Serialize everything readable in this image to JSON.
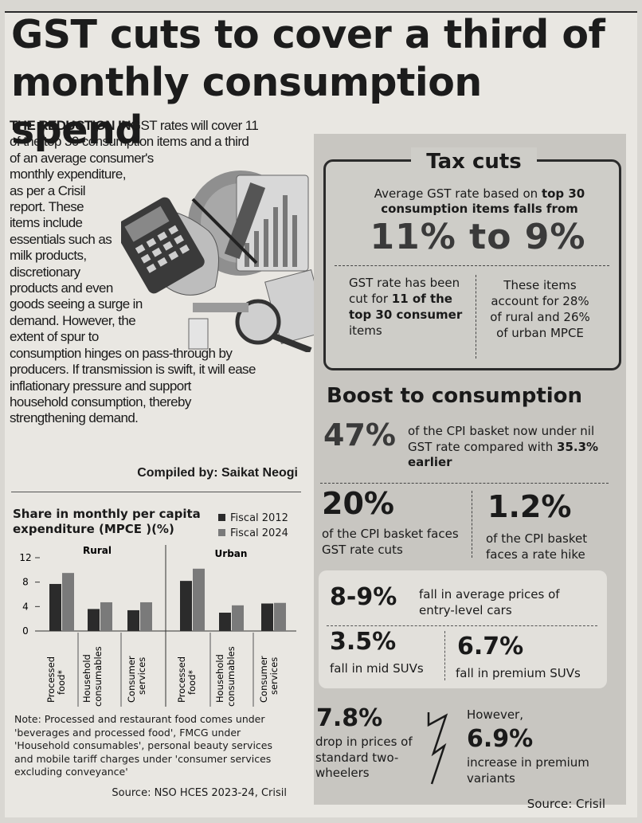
{
  "headline": {
    "line1": "GST cuts to cover a third of",
    "line2": "monthly consumption spend"
  },
  "intro": {
    "lead": "THE REDUCTION IN",
    "lines": [
      "GST rates will cover 11",
      "of the top 30 consumption items and a third",
      "of an average consumer's",
      "monthly expenditure,",
      "as per a Crisil",
      "report. These",
      "items include",
      "essentials such as",
      "milk products,",
      "discretionary",
      "products and even",
      "goods seeing a surge in",
      "demand. However, the",
      "extent of spur to",
      "consumption hinges on pass-through by",
      "producers. If transmission is swift, it will ease",
      "inflationary pressure and support",
      "household consumption, thereby",
      "strengthening demand."
    ],
    "credit": "Compiled by: Saikat Neogi"
  },
  "chart_data": {
    "type": "bar",
    "title": "Share in monthly per capita expenditure (MPCE )(%)",
    "groups": [
      "Rural",
      "Urban"
    ],
    "categories": [
      "Processed food*",
      "Household consumables",
      "Consumer services",
      "Processed food*",
      "Household consumables",
      "Consumer services"
    ],
    "series": [
      {
        "name": "Fiscal 2012",
        "values": [
          7.7,
          3.6,
          3.4,
          8.2,
          3.0,
          4.5
        ]
      },
      {
        "name": "Fiscal 2024",
        "values": [
          9.5,
          4.7,
          4.7,
          10.2,
          4.2,
          4.6
        ]
      }
    ],
    "yticks": [
      "0",
      "4",
      "8",
      "12"
    ],
    "ylim": [
      0,
      12
    ],
    "colors": {
      "Fiscal 2012": "#2b2b2b",
      "Fiscal 2024": "#7a7a7a"
    }
  },
  "chart_labels": {
    "cat1": [
      "Processed",
      "food*"
    ],
    "cat2": [
      "Household",
      "consumables"
    ],
    "cat3": [
      "Consumer",
      "services"
    ],
    "cat4": [
      "Processed",
      "food*"
    ],
    "cat5": [
      "Household",
      "consumables"
    ],
    "cat6": [
      "Consumer",
      "services"
    ]
  },
  "chart_text": {
    "title_line1": "Share in monthly per capita",
    "title_line2": "expenditure (MPCE )(%)",
    "legend_2012": "Fiscal 2012",
    "legend_2024": "Fiscal 2024",
    "group_rural": "Rural",
    "group_urban": "Urban"
  },
  "note": "Note: Processed and restaurant food comes under 'beverages and processed food', FMCG under 'Household consumables', personal beauty services and mobile tariff charges under 'consumer services excluding conveyance'",
  "source_left": "Source: NSO HCES 2023-24, Crisil",
  "tax": {
    "title": "Tax cuts",
    "lead_plain": "Average GST rate based on ",
    "lead_bold": "top 30 consumption items falls from",
    "big": "11% to 9%",
    "left_plain": "GST rate has been cut for ",
    "left_bold": "11 of the top 30 consumer",
    "left_end": " items",
    "right": "These items account for 28% of rural and 26% of urban MPCE"
  },
  "boost": {
    "title": "Boost to consumption",
    "s47": "47%",
    "s47_plain": "of the CPI basket now under nil GST rate compared with ",
    "s47_bold": "35.3% earlier",
    "s20": "20%",
    "s20_text": "of the CPI basket faces GST rate cuts",
    "s12": "1.2%",
    "s12_text": "of the CPI basket faces a rate hike",
    "s89": "8-9%",
    "s89_text": "fall in average prices of entry-level cars",
    "s35": "3.5%",
    "s35_text": "fall in mid SUVs",
    "s67": "6.7%",
    "s67_text": "fall in premium SUVs",
    "s78": "7.8%",
    "s78_text": "drop in prices of standard two-wheelers",
    "s69_pre": "However,",
    "s69": "6.9%",
    "s69_text": "increase in premium variants"
  },
  "source_right": "Source: Crisil"
}
